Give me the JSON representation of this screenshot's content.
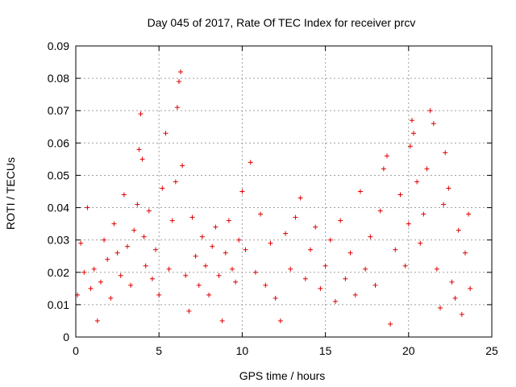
{
  "chart_data": {
    "type": "scatter",
    "title": "Day 045 of 2017, Rate Of TEC Index for receiver prcv",
    "xlabel": "GPS time / hours",
    "ylabel": "ROTI / TECUs",
    "xlim": [
      0,
      25
    ],
    "ylim": [
      0,
      0.09
    ],
    "xticks": [
      0,
      5,
      10,
      15,
      20,
      25
    ],
    "xtick_labels": [
      "0",
      "5",
      "10",
      "15",
      "20",
      "25"
    ],
    "yticks": [
      0,
      0.01,
      0.02,
      0.03,
      0.04,
      0.05,
      0.06,
      0.07,
      0.08,
      0.09
    ],
    "ytick_labels": [
      "0",
      "0.01",
      "0.02",
      "0.03",
      "0.04",
      "0.05",
      "0.06",
      "0.07",
      "0.08",
      "0.09"
    ],
    "grid": true,
    "marker": "plus",
    "color": "#e00000",
    "series": [
      {
        "name": "ROTI",
        "x": [
          0.1,
          0.3,
          0.5,
          0.7,
          0.9,
          1.1,
          1.3,
          1.5,
          1.7,
          1.9,
          2.1,
          2.3,
          2.5,
          2.7,
          2.9,
          3.1,
          3.3,
          3.5,
          3.7,
          3.8,
          3.9,
          4.0,
          4.1,
          4.2,
          4.4,
          4.6,
          4.8,
          5.0,
          5.2,
          5.4,
          5.6,
          5.8,
          6.0,
          6.1,
          6.2,
          6.3,
          6.4,
          6.6,
          6.8,
          7.0,
          7.2,
          7.4,
          7.6,
          7.8,
          8.0,
          8.2,
          8.4,
          8.6,
          8.8,
          9.0,
          9.2,
          9.4,
          9.6,
          9.8,
          10.0,
          10.2,
          10.5,
          10.8,
          11.1,
          11.4,
          11.7,
          12.0,
          12.3,
          12.6,
          12.9,
          13.2,
          13.5,
          13.8,
          14.1,
          14.4,
          14.7,
          15.0,
          15.3,
          15.6,
          15.9,
          16.2,
          16.5,
          16.8,
          17.1,
          17.4,
          17.7,
          18.0,
          18.3,
          18.5,
          18.7,
          18.9,
          19.2,
          19.5,
          19.8,
          20.0,
          20.1,
          20.2,
          20.3,
          20.5,
          20.7,
          20.9,
          21.1,
          21.3,
          21.5,
          21.7,
          21.9,
          22.1,
          22.2,
          22.4,
          22.6,
          22.8,
          23.0,
          23.2,
          23.4,
          23.6,
          23.7
        ],
        "y": [
          0.013,
          0.029,
          0.02,
          0.04,
          0.015,
          0.021,
          0.005,
          0.017,
          0.03,
          0.024,
          0.012,
          0.035,
          0.026,
          0.019,
          0.044,
          0.028,
          0.016,
          0.033,
          0.041,
          0.058,
          0.069,
          0.055,
          0.031,
          0.022,
          0.039,
          0.018,
          0.027,
          0.013,
          0.046,
          0.063,
          0.021,
          0.036,
          0.048,
          0.071,
          0.079,
          0.082,
          0.053,
          0.019,
          0.008,
          0.037,
          0.025,
          0.016,
          0.031,
          0.022,
          0.013,
          0.028,
          0.034,
          0.019,
          0.005,
          0.026,
          0.036,
          0.021,
          0.017,
          0.03,
          0.045,
          0.027,
          0.054,
          0.02,
          0.038,
          0.016,
          0.029,
          0.012,
          0.005,
          0.032,
          0.021,
          0.037,
          0.043,
          0.018,
          0.027,
          0.034,
          0.015,
          0.022,
          0.03,
          0.011,
          0.036,
          0.018,
          0.026,
          0.013,
          0.045,
          0.021,
          0.031,
          0.016,
          0.039,
          0.052,
          0.056,
          0.004,
          0.027,
          0.044,
          0.022,
          0.035,
          0.059,
          0.067,
          0.063,
          0.048,
          0.029,
          0.038,
          0.052,
          0.07,
          0.066,
          0.021,
          0.009,
          0.041,
          0.057,
          0.046,
          0.017,
          0.012,
          0.033,
          0.007,
          0.026,
          0.038,
          0.015
        ]
      }
    ]
  }
}
